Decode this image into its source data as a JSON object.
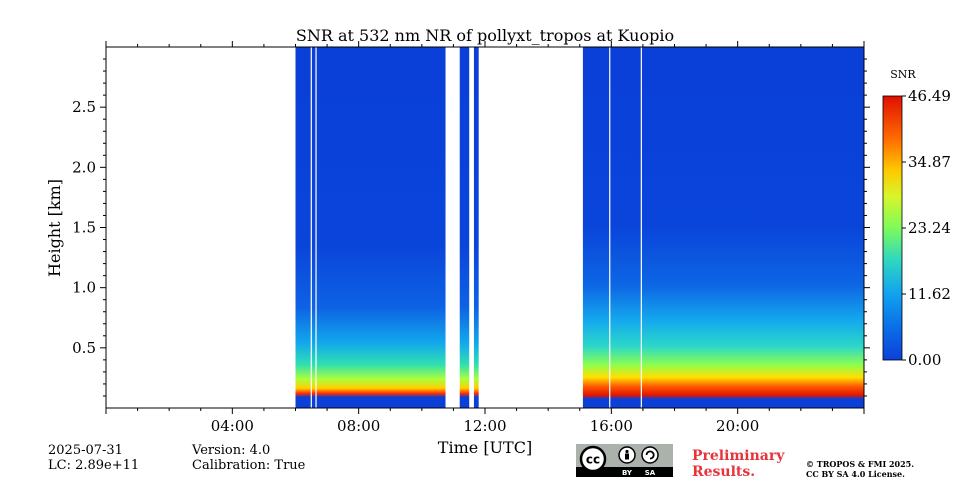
{
  "chart_data": {
    "type": "heatmap",
    "title": "SNR at 532 nm NR of pollyxt_tropos at Kuopio",
    "xlabel": "Time [UTC]",
    "ylabel": "Height [km]",
    "x_range_hours": [
      0,
      24
    ],
    "y_range_km": [
      0,
      3.0
    ],
    "x_ticks": [
      "04:00",
      "08:00",
      "12:00",
      "16:00",
      "20:00"
    ],
    "x_tick_hours": [
      4,
      8,
      12,
      16,
      20
    ],
    "y_ticks": [
      "0.5",
      "1.0",
      "1.5",
      "2.0",
      "2.5"
    ],
    "y_tick_values": [
      0.5,
      1.0,
      1.5,
      2.0,
      2.5
    ],
    "data_segments_hours": [
      [
        6.0,
        10.75
      ],
      [
        11.2,
        11.5
      ],
      [
        11.65,
        11.8
      ],
      [
        15.1,
        24.0
      ]
    ],
    "gap_lines_hours": [
      6.5,
      6.65,
      15.95,
      16.95
    ],
    "colorbar": {
      "label": "SNR",
      "min": 0.0,
      "max": 46.49,
      "ticks": [
        "0.00",
        "11.62",
        "23.24",
        "34.87",
        "46.49"
      ],
      "tick_values": [
        0.0,
        11.62,
        23.24,
        34.87,
        46.49
      ],
      "colormap": "jet"
    },
    "grid": false
  },
  "footer": {
    "date": "2025-07-31",
    "lc": "LC: 2.89e+11",
    "version": "Version: 4.0",
    "calibration": "Calibration: True",
    "preliminary_line1": "Preliminary",
    "preliminary_line2": "Results.",
    "copyright_line1": "© TROPOS & FMI 2025.",
    "copyright_line2": "CC BY SA 4.0 License.",
    "license_logo_text": "cc",
    "license_by": "BY",
    "license_sa": "SA"
  },
  "colors": {
    "prelim": "#e8333a",
    "background_blue": "#0a3fd8"
  }
}
